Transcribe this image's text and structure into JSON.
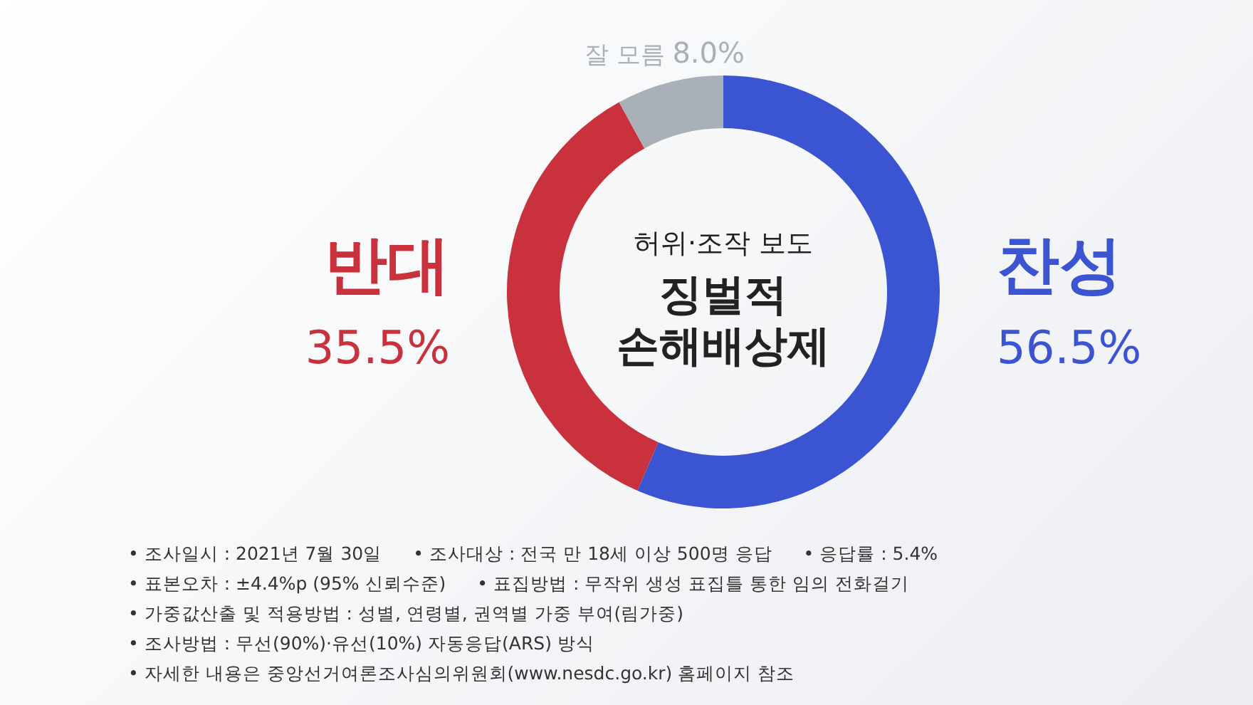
{
  "chart_data": {
    "type": "donut",
    "title": "허위·조작 보도",
    "subtitle": "징벌적 손해배상제",
    "categories": [
      "찬성",
      "반대",
      "잘 모름"
    ],
    "values": [
      56.5,
      35.5,
      8.0
    ],
    "value_labels": [
      "56.5%",
      "35.5%",
      "8.0%"
    ],
    "colors": [
      "#3b54d1",
      "#c9323c",
      "#a9b0b8"
    ],
    "annotations": [
      "• 조사일시 : 2021년 7월 30일",
      "• 조사대상 : 전국 만 18세 이상 500명 응답",
      "• 응답률 : 5.4%",
      "• 표본오차 : ±4.4%p (95% 신뢰수준)",
      "• 표집방법 : 무작위 생성 표집틀 통한 임의 전화걸기",
      "• 가중값산출 및 적용방법 : 성별, 연령별, 권역별 가중 부여(림가중)",
      "• 조사방법 : 무선(90%)·유선(10%) 자동응답(ARS) 방식",
      "• 자세한 내용은 중앙선거여론조사심의위원회(www.nesdc.go.kr) 홈페이지 참조"
    ]
  }
}
